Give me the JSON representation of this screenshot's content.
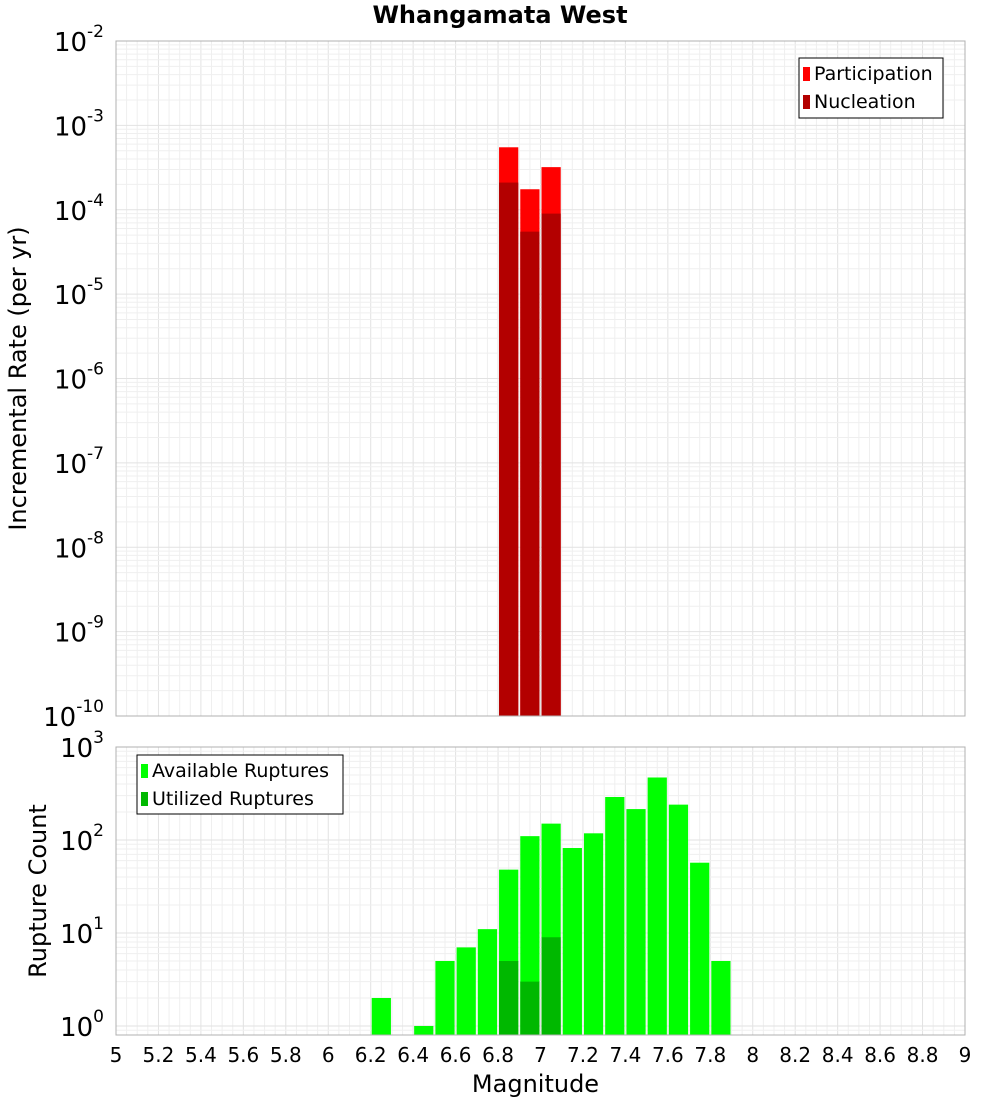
{
  "chart_data": [
    {
      "type": "bar",
      "title": "Whangamata West",
      "xlabel": "",
      "ylabel": "Incremental Rate (per yr)",
      "yscale": "log",
      "xlim": [
        5,
        9
      ],
      "ylim": [
        1e-10,
        0.01
      ],
      "ytick_exponents": [
        -10,
        -9,
        -8,
        -7,
        -6,
        -5,
        -4,
        -3,
        -2
      ],
      "bar_width": 0.1,
      "legend_position": "top-right",
      "series": [
        {
          "name": "Participation",
          "color": "#ff0000",
          "x": [
            6.85,
            6.95,
            7.05
          ],
          "values": [
            0.00055,
            0.000175,
            0.00032
          ]
        },
        {
          "name": "Nucleation",
          "color": "#b30000",
          "x": [
            6.85,
            6.95,
            7.05
          ],
          "values": [
            0.00021,
            5.5e-05,
            9e-05
          ]
        }
      ]
    },
    {
      "type": "bar",
      "title": "",
      "xlabel": "Magnitude",
      "ylabel": "Rupture Count",
      "yscale": "log",
      "xlim": [
        5,
        9
      ],
      "ylim": [
        0.8,
        1000
      ],
      "ytick_exponents": [
        0,
        1,
        2,
        3
      ],
      "bar_width": 0.1,
      "legend_position": "top-left",
      "xticks": [
        "5",
        "5.2",
        "5.4",
        "5.6",
        "5.8",
        "6",
        "6.2",
        "6.4",
        "6.6",
        "6.8",
        "7",
        "7.2",
        "7.4",
        "7.6",
        "7.8",
        "8",
        "8.2",
        "8.4",
        "8.6",
        "8.8",
        "9"
      ],
      "series": [
        {
          "name": "Available Ruptures",
          "color": "#00ff00",
          "x": [
            6.25,
            6.45,
            6.55,
            6.65,
            6.75,
            6.85,
            6.95,
            7.05,
            7.15,
            7.25,
            7.35,
            7.45,
            7.55,
            7.65,
            7.75,
            7.85
          ],
          "values": [
            2,
            1,
            5,
            7,
            11,
            48,
            110,
            150,
            82,
            118,
            290,
            215,
            470,
            240,
            57,
            5
          ]
        },
        {
          "name": "Utilized Ruptures",
          "color": "#00b800",
          "x": [
            6.85,
            6.95,
            7.05
          ],
          "values": [
            5,
            3,
            9
          ]
        }
      ]
    }
  ]
}
